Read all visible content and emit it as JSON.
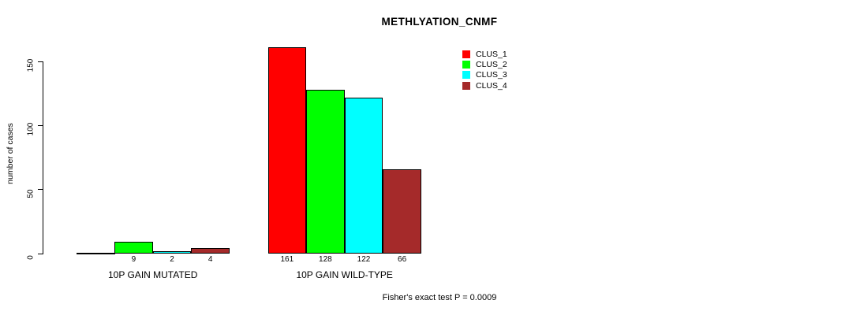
{
  "chart_data": {
    "type": "bar",
    "title": "METHLYATION_CNMF",
    "ylabel": "number of cases",
    "xlabel": "",
    "yticks": [
      0,
      50,
      100,
      150
    ],
    "ylim": [
      0,
      165
    ],
    "grid": false,
    "legend_position": "top-right",
    "categories": [
      "10P GAIN MUTATED",
      "10P GAIN WILD-TYPE"
    ],
    "series": [
      {
        "name": "CLUS_1",
        "color": "#FF0000",
        "values": [
          0,
          161
        ]
      },
      {
        "name": "CLUS_2",
        "color": "#00FF00",
        "values": [
          9,
          128
        ]
      },
      {
        "name": "CLUS_3",
        "color": "#00FFFF",
        "values": [
          2,
          122
        ]
      },
      {
        "name": "CLUS_4",
        "color": "#A52A2A",
        "values": [
          4,
          66
        ]
      }
    ],
    "bar_value_labels": [
      [
        "",
        "9",
        "2",
        "4"
      ],
      [
        "161",
        "128",
        "122",
        "66"
      ]
    ],
    "annotation": "Fisher's exact test P = 0.0009"
  }
}
